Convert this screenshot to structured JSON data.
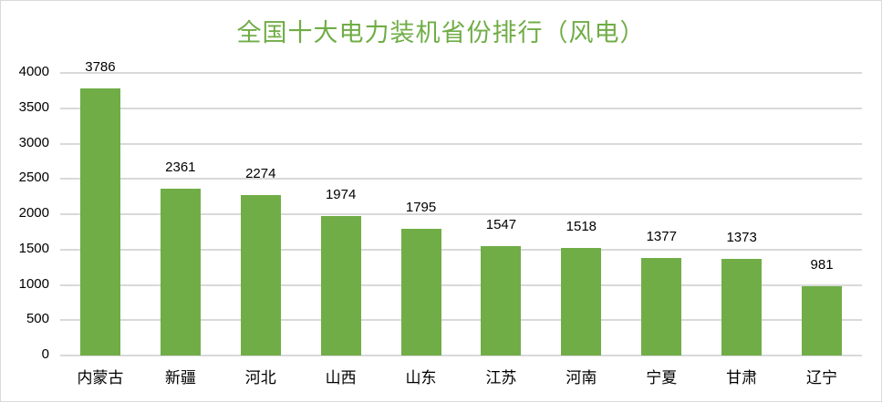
{
  "chart_data": {
    "type": "bar",
    "title": "全国十大电力装机省份排行（风电）",
    "xlabel": "",
    "ylabel": "",
    "ylim": [
      0,
      4000
    ],
    "yticks": [
      0,
      500,
      1000,
      1500,
      2000,
      2500,
      3000,
      3500,
      4000
    ],
    "grid": true,
    "legend": null,
    "bar_color": "#70ad47",
    "title_color": "#70ad47",
    "categories": [
      "内蒙古",
      "新疆",
      "河北",
      "山西",
      "山东",
      "江苏",
      "河南",
      "宁夏",
      "甘肃",
      "辽宁"
    ],
    "values": [
      3786,
      2361,
      2274,
      1974,
      1795,
      1547,
      1518,
      1377,
      1373,
      981
    ],
    "data_labels": [
      "3786",
      "2361",
      "2274",
      "1974",
      "1795",
      "1547",
      "1518",
      "1377",
      "1373",
      "981"
    ]
  }
}
